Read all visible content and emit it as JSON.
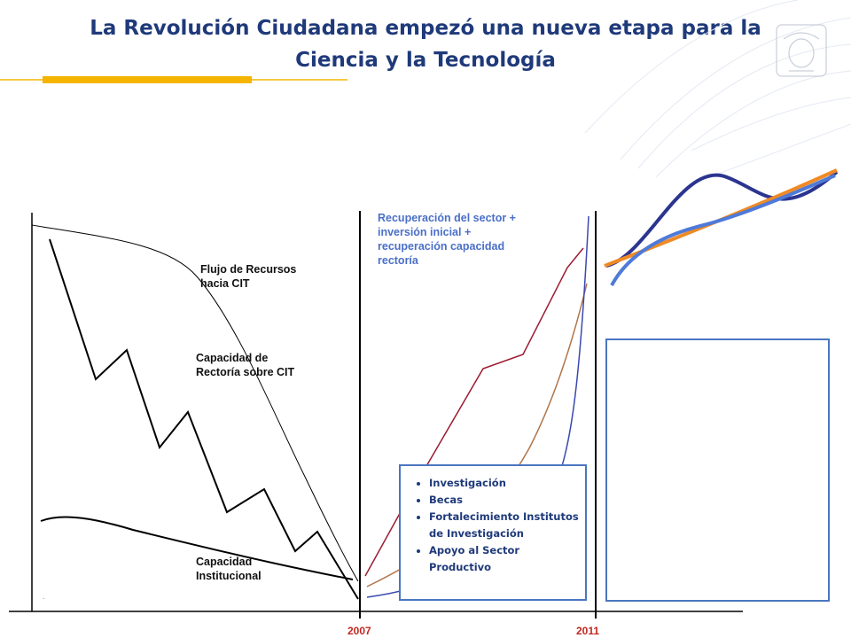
{
  "slide": {
    "title_line1": "La Revolución Ciudadana empezó una nueva etapa para la",
    "title_line2": "Ciencia y la Tecnología"
  },
  "diagram": {
    "labels": {
      "flujo_line1": "Flujo de Recursos",
      "flujo_line2": "hacia CIT",
      "rectoria_line1": "Capacidad de",
      "rectoria_line2": "Rectoría sobre CIT",
      "institucional_line1": "Capacidad",
      "institucional_line2": "Institucional",
      "recuperacion_line1": "Recuperación del sector +",
      "recuperacion_line2": "inversión inicial +",
      "recuperacion_line3": "recuperación capacidad",
      "recuperacion_line4": "rectoría"
    },
    "years": {
      "start": "2007",
      "end": "2011"
    }
  },
  "list_box": {
    "items": [
      "Investigación",
      "Becas",
      "Fortalecimiento Institutos de Investigación",
      "Apoyo al Sector Productivo"
    ]
  },
  "colors": {
    "title": "#1f3a7a",
    "accent_bar": "#f5b400",
    "year_text": "#c0281f",
    "curve_red": "#9b1b30",
    "curve_brown": "#b0744a",
    "curve_blue": "#3a48b0",
    "box_border": "#4a76c0",
    "wave_navy": "#2b3590",
    "wave_orange": "#f08a24",
    "wave_blue": "#4f7ad8"
  }
}
